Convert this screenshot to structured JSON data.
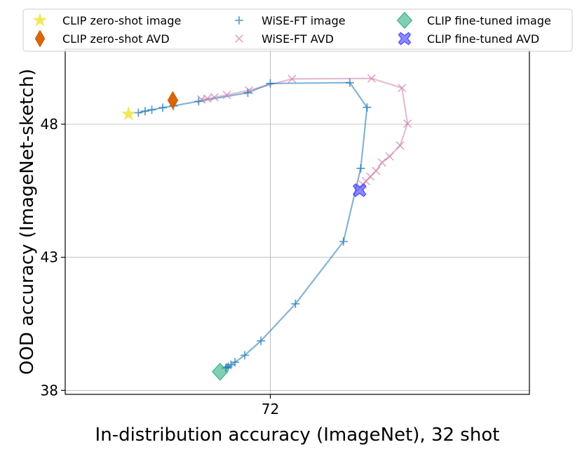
{
  "chart_data": {
    "type": "scatter",
    "xlabel": "In-distribution accuracy (ImageNet), 32 shot",
    "ylabel": "OOD accuracy (ImageNet-sketch)",
    "xlim": [
      66.53,
      78.91
    ],
    "ylim": [
      37.85,
      50.82
    ],
    "x_ticks": [
      {
        "value": 72,
        "label": "72"
      }
    ],
    "y_ticks": [
      {
        "value": 38,
        "label": "38"
      },
      {
        "value": 43,
        "label": "43"
      },
      {
        "value": 48,
        "label": "48"
      }
    ],
    "grid": true,
    "legend_position": "top",
    "series": [
      {
        "name": "WiSE-FT image",
        "marker": "plus",
        "color": "#1f77b4",
        "line": true,
        "points": [
          [
            68.48,
            48.43
          ],
          [
            68.66,
            48.49
          ],
          [
            68.84,
            48.54
          ],
          [
            69.13,
            48.62
          ],
          [
            69.42,
            48.69
          ],
          [
            70.09,
            48.86
          ],
          [
            71.4,
            49.18
          ],
          [
            72.0,
            49.53
          ],
          [
            74.12,
            49.56
          ],
          [
            74.58,
            48.63
          ],
          [
            74.41,
            46.34
          ],
          [
            73.95,
            43.59
          ],
          [
            72.67,
            41.25
          ],
          [
            71.75,
            39.86
          ],
          [
            71.32,
            39.32
          ],
          [
            71.06,
            39.06
          ],
          [
            70.95,
            38.96
          ],
          [
            70.88,
            38.89
          ],
          [
            70.84,
            38.86
          ],
          [
            70.81,
            38.84
          ]
        ]
      },
      {
        "name": "WiSE-FT AVD",
        "marker": "x",
        "color": "#cc79a7",
        "line": true,
        "points": [
          [
            70.16,
            48.93
          ],
          [
            70.32,
            48.96
          ],
          [
            70.51,
            49.01
          ],
          [
            70.84,
            49.1
          ],
          [
            71.43,
            49.27
          ],
          [
            72.58,
            49.7
          ],
          [
            74.7,
            49.72
          ],
          [
            75.51,
            49.36
          ],
          [
            75.66,
            48.02
          ],
          [
            75.46,
            47.2
          ],
          [
            75.18,
            46.79
          ],
          [
            74.98,
            46.56
          ],
          [
            74.82,
            46.25
          ],
          [
            74.67,
            46.03
          ],
          [
            74.55,
            45.86
          ],
          [
            74.47,
            45.73
          ],
          [
            74.4,
            45.63
          ]
        ]
      },
      {
        "name": "CLIP zero-shot image",
        "marker": "star",
        "color": "#f0e442",
        "line": false,
        "points": [
          [
            68.22,
            48.38
          ]
        ]
      },
      {
        "name": "CLIP zero-shot AVD",
        "marker": "diamond",
        "color": "#d55e00",
        "line": false,
        "points": [
          [
            69.4,
            48.9
          ]
        ]
      },
      {
        "name": "CLIP fine-tuned image",
        "marker": "diamond",
        "color": "#3cb38a",
        "line": false,
        "points": [
          [
            70.66,
            38.7
          ]
        ]
      },
      {
        "name": "CLIP fine-tuned AVD",
        "marker": "xfilled",
        "color": "#4b4bff",
        "line": false,
        "points": [
          [
            74.38,
            45.52
          ]
        ]
      }
    ],
    "legend": {
      "columns": [
        [
          "CLIP zero-shot image",
          "CLIP zero-shot AVD"
        ],
        [
          "WiSE-FT image",
          "WiSE-FT AVD"
        ],
        [
          "CLIP fine-tuned image",
          "CLIP fine-tuned AVD"
        ]
      ]
    }
  }
}
